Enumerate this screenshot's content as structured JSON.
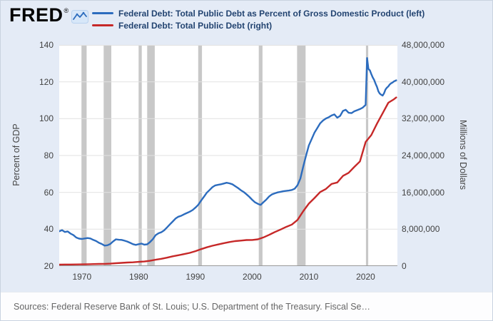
{
  "header": {
    "logo_text": "FRED",
    "registered_mark": "®",
    "legend": [
      {
        "label": "Federal Debt: Total Public Debt as Percent of Gross Domestic Product (left)",
        "color": "#2c6cbe"
      },
      {
        "label": "Federal Debt: Total Public Debt (right)",
        "color": "#c62828"
      }
    ]
  },
  "footer": {
    "sources": "Sources: Federal Reserve Bank of St. Louis; U.S. Department of the Treasury. Fiscal Se…"
  },
  "chart_data": {
    "type": "line",
    "title": "",
    "ylabel_left": "Percent of GDP",
    "ylabel_right": "Millions of Dollars",
    "xlim": [
      1966,
      2025.6
    ],
    "ylim_left": [
      20,
      140
    ],
    "ylim_right": [
      0,
      48000000
    ],
    "yticks_left": [
      20,
      40,
      60,
      80,
      100,
      120,
      140
    ],
    "yticks_right": [
      0,
      8000000,
      16000000,
      24000000,
      32000000,
      40000000,
      48000000
    ],
    "xticks": [
      1970,
      1980,
      1990,
      2000,
      2010,
      2020
    ],
    "grid": true,
    "legend_position": "top",
    "grid_color": "#e2e2e2",
    "axis_color": "#999999",
    "recession_color": "#c8c8c8",
    "recessions": [
      [
        1969.92,
        1970.83
      ],
      [
        1973.83,
        1975.17
      ],
      [
        1980.0,
        1980.55
      ],
      [
        1981.5,
        1982.83
      ],
      [
        1990.5,
        1991.17
      ],
      [
        2001.17,
        2001.83
      ],
      [
        2007.92,
        2009.42
      ],
      [
        2020.05,
        2020.45
      ]
    ],
    "series": [
      {
        "name": "Federal Debt: Total Public Debt as Percent of Gross Domestic Product",
        "axis": "left",
        "color": "#2c6cbe",
        "points": [
          [
            1966,
            38.9
          ],
          [
            1966.5,
            39.5
          ],
          [
            1967,
            38.5
          ],
          [
            1967.5,
            38.8
          ],
          [
            1968,
            37.6
          ],
          [
            1968.5,
            36.8
          ],
          [
            1969,
            35.5
          ],
          [
            1969.5,
            34.9
          ],
          [
            1970,
            34.7
          ],
          [
            1970.5,
            35.0
          ],
          [
            1971,
            35.2
          ],
          [
            1971.5,
            35.0
          ],
          [
            1972,
            34.2
          ],
          [
            1972.5,
            33.6
          ],
          [
            1973,
            32.6
          ],
          [
            1973.5,
            32.0
          ],
          [
            1974,
            31.1
          ],
          [
            1974.5,
            31.3
          ],
          [
            1975,
            32.0
          ],
          [
            1975.5,
            33.4
          ],
          [
            1976,
            34.5
          ],
          [
            1976.5,
            34.3
          ],
          [
            1977,
            34.2
          ],
          [
            1977.5,
            33.8
          ],
          [
            1978,
            33.3
          ],
          [
            1978.5,
            32.6
          ],
          [
            1979,
            31.9
          ],
          [
            1979.5,
            31.5
          ],
          [
            1980,
            31.9
          ],
          [
            1980.5,
            32.2
          ],
          [
            1981,
            31.6
          ],
          [
            1981.5,
            31.8
          ],
          [
            1982,
            33.0
          ],
          [
            1982.5,
            34.6
          ],
          [
            1983,
            36.8
          ],
          [
            1983.5,
            37.8
          ],
          [
            1984,
            38.4
          ],
          [
            1984.5,
            39.4
          ],
          [
            1985,
            41.0
          ],
          [
            1985.5,
            42.6
          ],
          [
            1986,
            44.2
          ],
          [
            1986.5,
            45.8
          ],
          [
            1987,
            46.8
          ],
          [
            1987.5,
            47.3
          ],
          [
            1988,
            48.1
          ],
          [
            1988.5,
            48.8
          ],
          [
            1989,
            49.5
          ],
          [
            1989.5,
            50.4
          ],
          [
            1990,
            51.7
          ],
          [
            1990.5,
            53.2
          ],
          [
            1991,
            55.5
          ],
          [
            1991.5,
            57.6
          ],
          [
            1992,
            59.8
          ],
          [
            1992.5,
            61.3
          ],
          [
            1993,
            62.8
          ],
          [
            1993.5,
            63.8
          ],
          [
            1994,
            64.1
          ],
          [
            1994.5,
            64.4
          ],
          [
            1995,
            64.8
          ],
          [
            1995.5,
            65.2
          ],
          [
            1996,
            64.9
          ],
          [
            1996.5,
            64.4
          ],
          [
            1997,
            63.4
          ],
          [
            1997.5,
            62.4
          ],
          [
            1998,
            61.2
          ],
          [
            1998.5,
            60.2
          ],
          [
            1999,
            59.0
          ],
          [
            1999.5,
            57.6
          ],
          [
            2000,
            56.0
          ],
          [
            2000.5,
            54.6
          ],
          [
            2001,
            53.8
          ],
          [
            2001.5,
            53.2
          ],
          [
            2002,
            54.7
          ],
          [
            2002.5,
            56.1
          ],
          [
            2003,
            57.8
          ],
          [
            2003.5,
            58.9
          ],
          [
            2004,
            59.5
          ],
          [
            2004.5,
            60.0
          ],
          [
            2005,
            60.3
          ],
          [
            2005.5,
            60.6
          ],
          [
            2006,
            60.8
          ],
          [
            2006.5,
            61.0
          ],
          [
            2007,
            61.3
          ],
          [
            2007.5,
            62.0
          ],
          [
            2008,
            63.9
          ],
          [
            2008.5,
            67.5
          ],
          [
            2009,
            74.0
          ],
          [
            2009.5,
            80.0
          ],
          [
            2010,
            85.5
          ],
          [
            2010.5,
            89.0
          ],
          [
            2011,
            92.5
          ],
          [
            2011.5,
            95.0
          ],
          [
            2012,
            97.5
          ],
          [
            2012.5,
            99.0
          ],
          [
            2013,
            100.1
          ],
          [
            2013.5,
            100.8
          ],
          [
            2014,
            101.7
          ],
          [
            2014.5,
            102.3
          ],
          [
            2015,
            100.5
          ],
          [
            2015.5,
            101.5
          ],
          [
            2016,
            104.2
          ],
          [
            2016.5,
            104.8
          ],
          [
            2017,
            103.2
          ],
          [
            2017.5,
            103.0
          ],
          [
            2018,
            104.0
          ],
          [
            2018.5,
            104.6
          ],
          [
            2019,
            105.2
          ],
          [
            2019.5,
            106.0
          ],
          [
            2020,
            107.5
          ],
          [
            2020.25,
            132.9
          ],
          [
            2020.5,
            127.0
          ],
          [
            2020.75,
            126.2
          ],
          [
            2021,
            124.2
          ],
          [
            2021.25,
            122.4
          ],
          [
            2021.5,
            121.0
          ],
          [
            2021.75,
            119.0
          ],
          [
            2022,
            117.2
          ],
          [
            2022.25,
            114.8
          ],
          [
            2022.5,
            113.6
          ],
          [
            2022.75,
            113.0
          ],
          [
            2023,
            112.5
          ],
          [
            2023.25,
            113.8
          ],
          [
            2023.5,
            115.8
          ],
          [
            2023.75,
            116.8
          ],
          [
            2024,
            117.5
          ],
          [
            2024.25,
            118.6
          ],
          [
            2024.5,
            119.2
          ],
          [
            2024.75,
            119.6
          ],
          [
            2025,
            120.2
          ],
          [
            2025.4,
            120.8
          ]
        ]
      },
      {
        "name": "Federal Debt: Total Public Debt",
        "axis": "right",
        "color": "#c62828",
        "points": [
          [
            1966,
            320000
          ],
          [
            1967,
            333000
          ],
          [
            1968,
            348000
          ],
          [
            1969,
            354000
          ],
          [
            1970,
            371000
          ],
          [
            1971,
            398000
          ],
          [
            1972,
            427000
          ],
          [
            1973,
            458000
          ],
          [
            1974,
            475000
          ],
          [
            1975,
            533000
          ],
          [
            1976,
            620000
          ],
          [
            1977,
            699000
          ],
          [
            1978,
            772000
          ],
          [
            1979,
            827000
          ],
          [
            1980,
            908000
          ],
          [
            1981,
            998000
          ],
          [
            1982,
            1142000
          ],
          [
            1983,
            1377000
          ],
          [
            1984,
            1572000
          ],
          [
            1985,
            1823000
          ],
          [
            1986,
            2125000
          ],
          [
            1987,
            2350000
          ],
          [
            1988,
            2602000
          ],
          [
            1989,
            2857000
          ],
          [
            1990,
            3233000
          ],
          [
            1991,
            3665000
          ],
          [
            1992,
            4065000
          ],
          [
            1993,
            4411000
          ],
          [
            1994,
            4693000
          ],
          [
            1995,
            4974000
          ],
          [
            1996,
            5225000
          ],
          [
            1997,
            5413000
          ],
          [
            1998,
            5526000
          ],
          [
            1999,
            5656000
          ],
          [
            2000,
            5674000
          ],
          [
            2001,
            5807000
          ],
          [
            2002,
            6228000
          ],
          [
            2003,
            6783000
          ],
          [
            2004,
            7379000
          ],
          [
            2005,
            7933000
          ],
          [
            2006,
            8507000
          ],
          [
            2007,
            9008000
          ],
          [
            2008,
            10025000
          ],
          [
            2009,
            11910000
          ],
          [
            2010,
            13562000
          ],
          [
            2011,
            14790000
          ],
          [
            2012,
            16066000
          ],
          [
            2013,
            16738000
          ],
          [
            2014,
            17824000
          ],
          [
            2015,
            18151000
          ],
          [
            2016,
            19573000
          ],
          [
            2017,
            20245000
          ],
          [
            2018,
            21516000
          ],
          [
            2019,
            22719000
          ],
          [
            2020,
            26945000
          ],
          [
            2021,
            28429000
          ],
          [
            2022,
            30928000
          ],
          [
            2023,
            33167000
          ],
          [
            2024,
            35460000
          ],
          [
            2025,
            36214000
          ],
          [
            2025.4,
            36600000
          ]
        ]
      }
    ]
  }
}
